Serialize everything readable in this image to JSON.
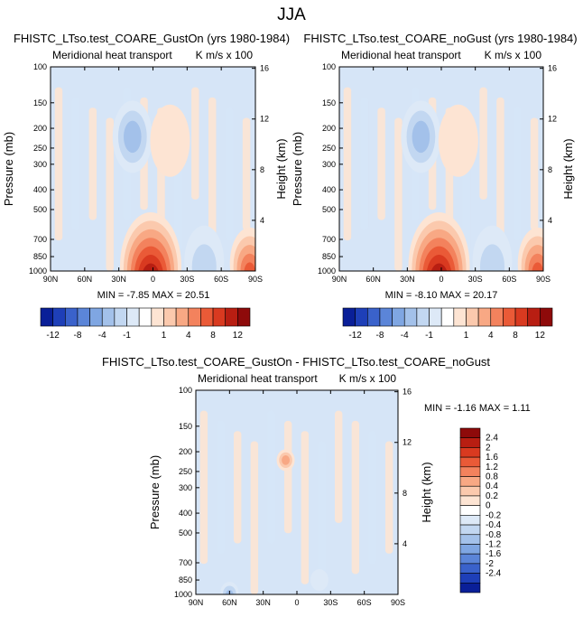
{
  "title": "JJA",
  "colors": {
    "pos": [
      "#fde4d3",
      "#fbc9ad",
      "#f8a884",
      "#f3825d",
      "#ea5a37",
      "#d93a20",
      "#b81e12",
      "#8e0a0a"
    ],
    "neg": [
      "#dde9f7",
      "#c2d7f1",
      "#a3c1ea",
      "#7fa6e2",
      "#5b85d8",
      "#3a62cb",
      "#1e3fb8",
      "#0a1f98"
    ],
    "zero": "#ffffff",
    "mainPos": "#fde4d3",
    "mainNeg": "#d6e5f7"
  },
  "panels": [
    {
      "title": "FHISTC_LTso.test_COARE_GustOn (yrs 1980-1984)",
      "left_label": "Meridional heat transport",
      "right_label": "K m/s x 100",
      "ylabel": "Pressure (mb)",
      "y2label": "Height (km)",
      "minmax": "MIN = -7.85  MAX = 20.51"
    },
    {
      "title": "FHISTC_LTso.test_COARE_noGust (yrs 1980-1984)",
      "left_label": "Meridional heat transport",
      "right_label": "K m/s x 100",
      "ylabel": "Pressure (mb)",
      "y2label": "Height (km)",
      "minmax": "MIN = -8.10  MAX = 20.17"
    },
    {
      "title": "FHISTC_LTso.test_COARE_GustOn - FHISTC_LTso.test_COARE_noGust",
      "left_label": "Meridional heat transport",
      "right_label": "K m/s x 100",
      "ylabel": "Pressure (mb)",
      "y2label": "Height (km)",
      "minmax": "MIN =  -1.16  MAX =   1.11"
    }
  ],
  "axes": {
    "x_ticks": [
      "90N",
      "60N",
      "30N",
      "0",
      "30S",
      "60S",
      "90S"
    ],
    "p_ticks": [
      "100",
      "150",
      "200",
      "250",
      "300",
      "400",
      "500",
      "700",
      "850",
      "1000"
    ],
    "p_values": [
      100,
      150,
      200,
      250,
      300,
      400,
      500,
      700,
      850,
      1000
    ],
    "h_ticks": [
      "16",
      "12",
      "8",
      "4"
    ],
    "h_values": [
      16,
      12,
      8,
      4
    ]
  },
  "colorbar_top": {
    "labels": [
      "-12",
      "-8",
      "-4",
      "-1",
      "1",
      "4",
      "8",
      "12"
    ],
    "colors": [
      "#0a1f98",
      "#1e3fb8",
      "#3a62cb",
      "#5b85d8",
      "#7fa6e2",
      "#a3c1ea",
      "#c2d7f1",
      "#dde9f7",
      "#ffffff",
      "#fde4d3",
      "#fbc9ad",
      "#f8a884",
      "#f3825d",
      "#ea5a37",
      "#d93a20",
      "#b81e12",
      "#8e0a0a"
    ]
  },
  "colorbar_diff": {
    "labels": [
      "2.4",
      "2",
      "1.6",
      "1.2",
      "0.8",
      "0.4",
      "0.2",
      "0",
      "-0.2",
      "-0.4",
      "-0.8",
      "-1.2",
      "-1.6",
      "-2",
      "-2.4"
    ],
    "colors": [
      "#8e0a0a",
      "#b81e12",
      "#d93a20",
      "#ea5a37",
      "#f3825d",
      "#f8a884",
      "#fbc9ad",
      "#fde4d3",
      "#ffffff",
      "#dde9f7",
      "#c2d7f1",
      "#a3c1ea",
      "#7fa6e2",
      "#5b85d8",
      "#3a62cb",
      "#1e3fb8",
      "#0a1f98"
    ]
  },
  "chart_data": [
    {
      "type": "heatmap",
      "title": "FHISTC_LTso.test_COARE_GustOn (yrs 1980-1984)",
      "subtitle_left": "Meridional heat transport",
      "units": "K m/s x 100",
      "xlabel": "",
      "ylabel": "Pressure (mb)",
      "y2label": "Height (km)",
      "min": -7.85,
      "max": 20.51,
      "x_range": [
        "90N",
        "90S"
      ],
      "y_range": [
        100,
        1000
      ],
      "blobs": [
        {
          "lat": 2,
          "p": 950,
          "value": 20.5,
          "sign": "pos"
        },
        {
          "lat": 18,
          "p": 220,
          "value": -7.8,
          "sign": "neg"
        },
        {
          "lat": -85,
          "p": 920,
          "value": 12,
          "sign": "pos"
        },
        {
          "lat": -45,
          "p": 900,
          "value": -4,
          "sign": "neg"
        },
        {
          "lat": -15,
          "p": 230,
          "value": 2,
          "sign": "pos"
        }
      ]
    },
    {
      "type": "heatmap",
      "title": "FHISTC_LTso.test_COARE_noGust (yrs 1980-1984)",
      "subtitle_left": "Meridional heat transport",
      "units": "K m/s x 100",
      "xlabel": "",
      "ylabel": "Pressure (mb)",
      "y2label": "Height (km)",
      "min": -8.1,
      "max": 20.17,
      "x_range": [
        "90N",
        "90S"
      ],
      "y_range": [
        100,
        1000
      ],
      "blobs": [
        {
          "lat": 2,
          "p": 950,
          "value": 20.2,
          "sign": "pos"
        },
        {
          "lat": 18,
          "p": 220,
          "value": -8.1,
          "sign": "neg"
        },
        {
          "lat": -85,
          "p": 920,
          "value": 12,
          "sign": "pos"
        },
        {
          "lat": -45,
          "p": 900,
          "value": -4,
          "sign": "neg"
        },
        {
          "lat": -15,
          "p": 230,
          "value": 2,
          "sign": "pos"
        }
      ]
    },
    {
      "type": "heatmap",
      "title": "FHISTC_LTso.test_COARE_GustOn - FHISTC_LTso.test_COARE_noGust",
      "subtitle_left": "Meridional heat transport",
      "units": "K m/s x 100",
      "xlabel": "",
      "ylabel": "Pressure (mb)",
      "y2label": "Height (km)",
      "min": -1.16,
      "max": 1.11,
      "x_range": [
        "90N",
        "90S"
      ],
      "y_range": [
        100,
        1000
      ],
      "blobs": [
        {
          "lat": 10,
          "p": 220,
          "value": 1.1,
          "sign": "pos"
        },
        {
          "lat": -20,
          "p": 850,
          "value": -0.5,
          "sign": "neg"
        },
        {
          "lat": 60,
          "p": 980,
          "value": -1.1,
          "sign": "neg"
        }
      ]
    }
  ]
}
